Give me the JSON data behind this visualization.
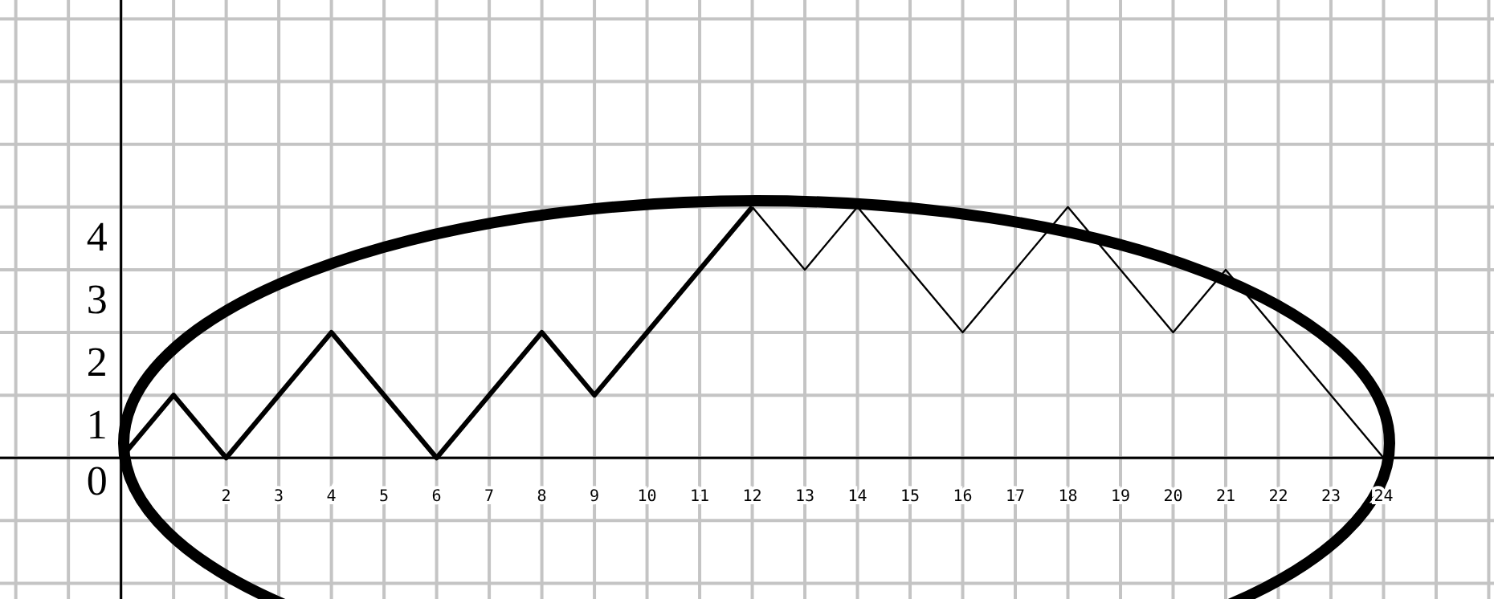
{
  "chart_data": {
    "type": "line",
    "series": [
      {
        "color": "#000000",
        "x": [
          0,
          1,
          2,
          4,
          6,
          8,
          9,
          12
        ],
        "values": [
          0,
          1,
          0,
          2,
          0,
          2,
          1,
          4
        ]
      },
      {
        "color": "#000000",
        "x": [
          12,
          13,
          14,
          16,
          18,
          20,
          21,
          24
        ],
        "values": [
          4,
          3,
          4,
          2,
          4,
          2,
          3,
          0
        ]
      }
    ],
    "xlim": [
      -2.3,
      26.1
    ],
    "ylim": [
      -2.25,
      7.3
    ],
    "xticks": [
      {
        "value": -2,
        "label": null
      },
      {
        "value": -1,
        "label": null
      },
      {
        "value": 0,
        "label": null
      },
      {
        "value": 1,
        "label": null
      },
      2,
      3,
      4,
      5,
      6,
      7,
      8,
      9,
      10,
      11,
      12,
      13,
      14,
      15,
      16,
      17,
      18,
      19,
      20,
      21,
      22,
      23,
      24,
      {
        "value": 25,
        "label": null
      },
      {
        "value": 26,
        "label": null
      }
    ],
    "yticks": [
      {
        "value": -2,
        "label": null
      },
      {
        "value": -1,
        "label": null
      },
      0,
      1,
      2,
      3,
      4,
      {
        "value": 5,
        "label": null
      },
      {
        "value": 6,
        "label": null
      },
      {
        "value": 7,
        "label": null
      }
    ],
    "grid": true,
    "marker": "none",
    "line_style": "solid"
  }
}
